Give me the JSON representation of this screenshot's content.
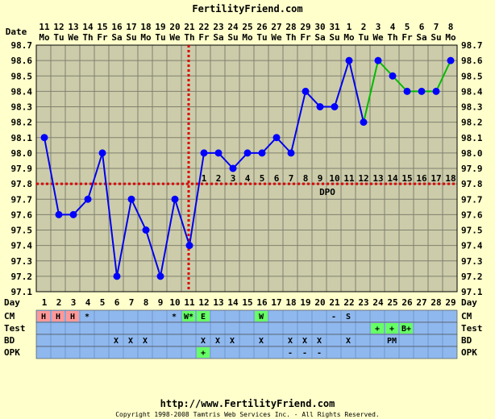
{
  "header": {
    "site_title": "FertilityFriend.com",
    "date_label": "Date"
  },
  "footer": {
    "url": "http://www.FertilityFriend.com",
    "copyright": "Copyright 1998-2008 Tamtris Web Services Inc. - All Rights Reserved."
  },
  "chart_data": {
    "type": "line",
    "dates": [
      "11",
      "12",
      "13",
      "14",
      "15",
      "16",
      "17",
      "18",
      "19",
      "20",
      "21",
      "22",
      "23",
      "24",
      "25",
      "26",
      "27",
      "28",
      "29",
      "30",
      "31",
      "1",
      "2",
      "3",
      "4",
      "5",
      "6",
      "7",
      "8"
    ],
    "weekdays": [
      "Mo",
      "Tu",
      "We",
      "Th",
      "Fr",
      "Sa",
      "Su",
      "Mo",
      "Tu",
      "We",
      "Th",
      "Fr",
      "Sa",
      "Su",
      "Mo",
      "Tu",
      "We",
      "Th",
      "Fr",
      "Sa",
      "Su",
      "Mo",
      "Tu",
      "We",
      "Th",
      "Fr",
      "Sa",
      "Su",
      "Mo"
    ],
    "days": [
      1,
      2,
      3,
      4,
      5,
      6,
      7,
      8,
      9,
      10,
      11,
      12,
      13,
      14,
      15,
      16,
      17,
      18,
      19,
      20,
      21,
      22,
      23,
      24,
      25,
      26,
      27,
      28,
      29
    ],
    "temperatures": [
      98.1,
      97.6,
      97.6,
      97.7,
      98.0,
      97.2,
      97.7,
      97.5,
      97.2,
      97.7,
      97.4,
      98.0,
      98.0,
      97.9,
      98.0,
      98.0,
      98.1,
      98.0,
      98.4,
      98.3,
      98.3,
      98.6,
      98.2,
      98.6,
      98.5,
      98.4,
      98.4,
      98.4,
      98.6
    ],
    "y_ticks": [
      "98.7",
      "98.6",
      "98.5",
      "98.4",
      "98.3",
      "98.2",
      "98.1",
      "98.0",
      "97.9",
      "97.8",
      "97.7",
      "97.6",
      "97.5",
      "97.4",
      "97.3",
      "97.2",
      "97.1"
    ],
    "ylim": [
      97.1,
      98.7
    ],
    "coverline": 97.8,
    "ovulation_day": 11,
    "dpo_label": "DPO",
    "dpo_numbers": [
      "1",
      "2",
      "3",
      "4",
      "5",
      "6",
      "7",
      "8",
      "9",
      "10",
      "11",
      "12",
      "13",
      "14",
      "15",
      "16",
      "17",
      "18"
    ],
    "blue_segment_end_day": 23,
    "colors": {
      "background": "#ffffcc",
      "plot_bg": "#ccccaa",
      "grid": "#808070",
      "blue_line": "#0000ee",
      "green_line": "#00bb00",
      "points": "#0000ff",
      "coverline": "#dd0000",
      "row_bg": "#8fb8ee",
      "cell_red": "#ff9999",
      "cell_green": "#66ff66"
    }
  },
  "rows": {
    "day_label": "Day",
    "cm_label": "CM",
    "test_label": "Test",
    "bd_label": "BD",
    "opk_label": "OPK",
    "cm": [
      {
        "day": 1,
        "text": "H",
        "color": "red"
      },
      {
        "day": 2,
        "text": "H",
        "color": "red"
      },
      {
        "day": 3,
        "text": "H",
        "color": "red"
      },
      {
        "day": 4,
        "text": "*"
      },
      {
        "day": 10,
        "text": "*"
      },
      {
        "day": 11,
        "text": "W*",
        "color": "green"
      },
      {
        "day": 12,
        "text": "E",
        "color": "green"
      },
      {
        "day": 16,
        "text": "W",
        "color": "green"
      },
      {
        "day": 21,
        "text": "-"
      },
      {
        "day": 22,
        "text": "S"
      }
    ],
    "test": [
      {
        "day": 24,
        "text": "+",
        "color": "green"
      },
      {
        "day": 25,
        "text": "+",
        "color": "green"
      },
      {
        "day": 26,
        "text": "B+",
        "color": "green"
      }
    ],
    "bd": [
      {
        "day": 6,
        "text": "X"
      },
      {
        "day": 7,
        "text": "X"
      },
      {
        "day": 8,
        "text": "X"
      },
      {
        "day": 12,
        "text": "X"
      },
      {
        "day": 13,
        "text": "X"
      },
      {
        "day": 14,
        "text": "X"
      },
      {
        "day": 16,
        "text": "X"
      },
      {
        "day": 18,
        "text": "X"
      },
      {
        "day": 19,
        "text": "X"
      },
      {
        "day": 20,
        "text": "X"
      },
      {
        "day": 22,
        "text": "X"
      },
      {
        "day": 25,
        "text": "PM"
      }
    ],
    "opk": [
      {
        "day": 12,
        "text": "+",
        "color": "green"
      },
      {
        "day": 18,
        "text": "-"
      },
      {
        "day": 19,
        "text": "-"
      },
      {
        "day": 20,
        "text": "-"
      }
    ]
  }
}
